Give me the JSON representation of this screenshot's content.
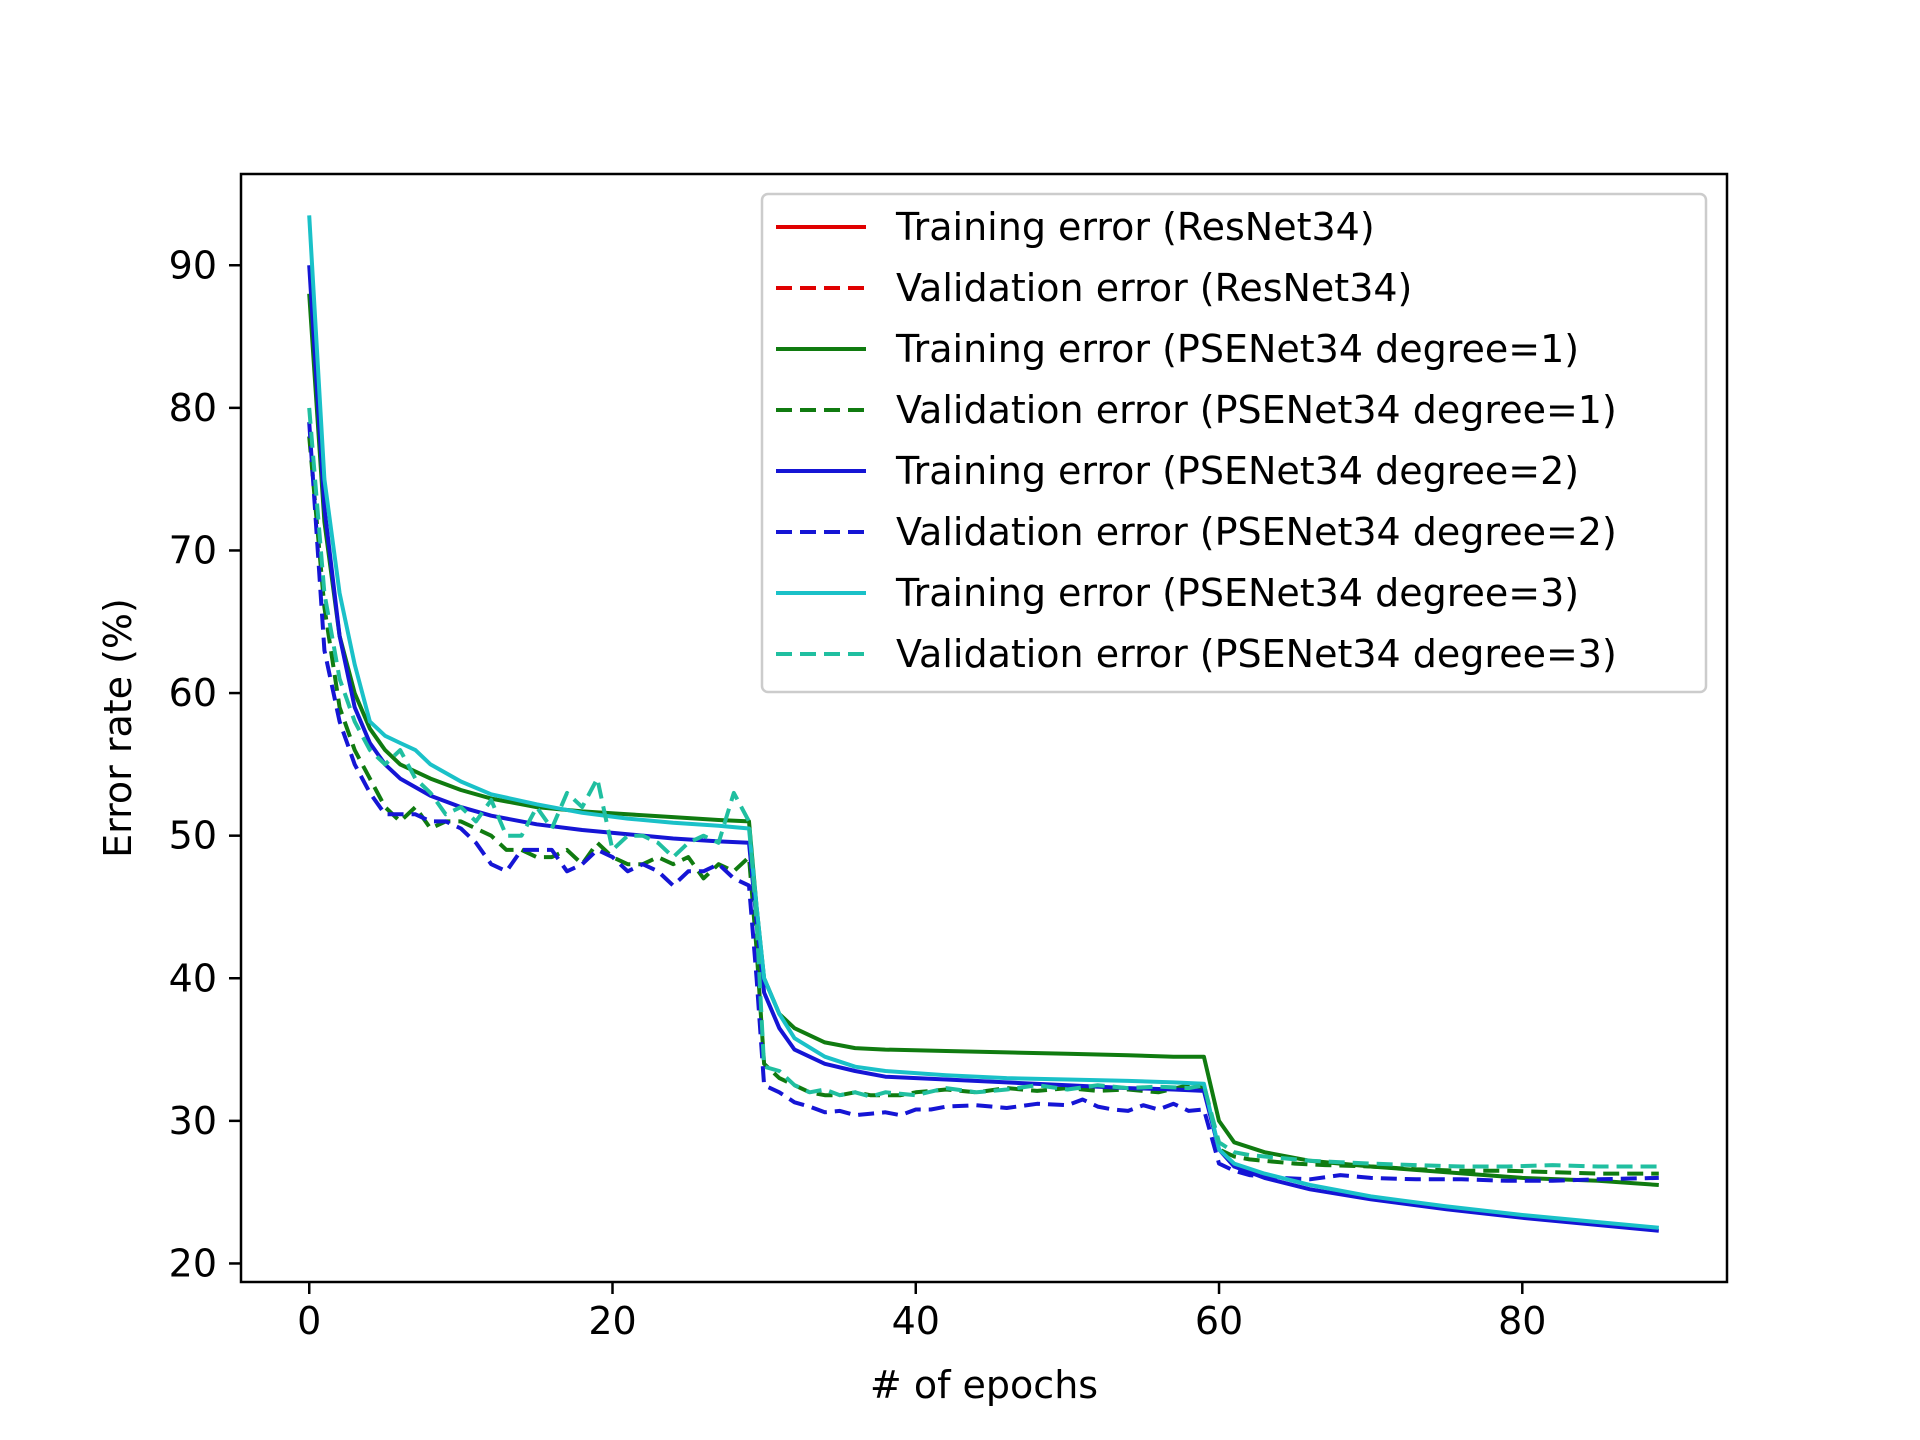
{
  "chart_data": {
    "type": "line",
    "title": "",
    "xlabel": "# of epochs",
    "ylabel": "Error rate (%)",
    "xlim": [
      -4.5,
      93.5
    ],
    "ylim": [
      18.7,
      96.4
    ],
    "xticks": [
      0,
      20,
      40,
      60,
      80
    ],
    "yticks": [
      20,
      30,
      40,
      50,
      60,
      70,
      80,
      90
    ],
    "legend_position": "upper right",
    "series": [
      {
        "name": "Training error (ResNet34)",
        "color": "#e00000",
        "dash": "solid",
        "x": [],
        "y": []
      },
      {
        "name": "Validation error (ResNet34)",
        "color": "#e00000",
        "dash": "dashed",
        "x": [],
        "y": []
      },
      {
        "name": "Training error (PSENet34 degree=1)",
        "color": "#107b10",
        "dash": "solid",
        "x": [
          0,
          1,
          2,
          3,
          4,
          5,
          6,
          8,
          10,
          12,
          15,
          18,
          21,
          24,
          27,
          29,
          29.5,
          30,
          31,
          32,
          34,
          36,
          38,
          42,
          46,
          50,
          54,
          57,
          59,
          60,
          61,
          63,
          66,
          70,
          75,
          80,
          85,
          89
        ],
        "y": [
          88,
          72,
          64,
          60,
          57.5,
          56,
          55,
          54,
          53.2,
          52.6,
          52,
          51.7,
          51.5,
          51.3,
          51.1,
          51.0,
          45,
          40,
          37.5,
          36.5,
          35.5,
          35.1,
          35.0,
          34.9,
          34.8,
          34.7,
          34.6,
          34.5,
          34.5,
          30,
          28.5,
          27.8,
          27.2,
          26.8,
          26.4,
          26.0,
          25.8,
          25.5
        ]
      },
      {
        "name": "Validation error (PSENet34 degree=1)",
        "color": "#107b10",
        "dash": "dashed",
        "x": [
          0,
          1,
          2,
          3,
          4,
          5,
          6,
          7,
          8,
          9,
          10,
          11,
          12,
          13,
          14,
          15,
          16,
          17,
          18,
          19,
          20,
          21,
          22,
          23,
          24,
          25,
          26,
          27,
          28,
          29,
          29.5,
          30,
          31,
          32,
          33,
          34,
          35,
          36,
          37,
          38,
          39,
          40,
          42,
          44,
          46,
          48,
          50,
          52,
          54,
          56,
          58,
          59,
          60,
          61,
          62,
          63,
          65,
          67,
          70,
          73,
          76,
          79,
          82,
          85,
          89
        ],
        "y": [
          78,
          66,
          59,
          56,
          54,
          52,
          51,
          52,
          50.5,
          51,
          51,
          50.5,
          50,
          49,
          49,
          48.5,
          48.5,
          49,
          48,
          49.5,
          48.5,
          48,
          48,
          48.5,
          48,
          48.5,
          47,
          48,
          47.5,
          48.5,
          42,
          34,
          33,
          32.5,
          32,
          31.8,
          31.8,
          32,
          31.8,
          31.8,
          31.8,
          32,
          32.2,
          32,
          32.3,
          32.1,
          32.3,
          32.1,
          32.2,
          32,
          32.5,
          32.3,
          28,
          27.5,
          27.3,
          27.2,
          27,
          26.9,
          26.8,
          26.6,
          26.5,
          26.5,
          26.4,
          26.3,
          26.3
        ]
      },
      {
        "name": "Training error (PSENet34 degree=2)",
        "color": "#1515d5",
        "dash": "solid",
        "x": [
          0,
          1,
          2,
          3,
          4,
          5,
          6,
          8,
          10,
          12,
          15,
          18,
          21,
          24,
          27,
          29,
          29.5,
          30,
          31,
          32,
          34,
          36,
          38,
          42,
          46,
          50,
          54,
          57,
          59,
          60,
          61,
          63,
          66,
          70,
          75,
          80,
          85,
          89
        ],
        "y": [
          90,
          73,
          64,
          59,
          56.5,
          55,
          54,
          52.8,
          52,
          51.4,
          50.8,
          50.4,
          50.1,
          49.8,
          49.6,
          49.5,
          44,
          39,
          36.5,
          35,
          34,
          33.5,
          33.1,
          32.9,
          32.7,
          32.5,
          32.3,
          32.2,
          32.1,
          28,
          26.8,
          26,
          25.2,
          24.5,
          23.8,
          23.2,
          22.7,
          22.3
        ]
      },
      {
        "name": "Validation error (PSENet34 degree=2)",
        "color": "#1515d5",
        "dash": "dashed",
        "x": [
          0,
          1,
          2,
          3,
          4,
          5,
          6,
          7,
          8,
          9,
          10,
          11,
          12,
          13,
          14,
          15,
          16,
          17,
          18,
          19,
          20,
          21,
          22,
          23,
          24,
          25,
          26,
          27,
          28,
          29,
          29.5,
          30,
          31,
          32,
          33,
          34,
          35,
          36,
          37,
          38,
          39,
          40,
          41,
          42,
          44,
          46,
          48,
          50,
          51,
          52,
          53,
          54,
          55,
          56,
          57,
          58,
          59,
          60,
          61,
          62,
          64,
          66,
          68,
          70,
          73,
          76,
          79,
          82,
          85,
          89
        ],
        "y": [
          79,
          63,
          58,
          55,
          53,
          51.5,
          51.5,
          51.5,
          51,
          51,
          50.5,
          49.5,
          48,
          47.5,
          49,
          49,
          49,
          47.5,
          48,
          49,
          48.5,
          47.5,
          48,
          47.5,
          46.5,
          47.5,
          47.5,
          48,
          47,
          46.5,
          40,
          32.5,
          32,
          31.3,
          31,
          30.6,
          30.7,
          30.4,
          30.5,
          30.6,
          30.4,
          30.8,
          30.8,
          31,
          31.1,
          30.9,
          31.2,
          31.1,
          31.5,
          31,
          30.8,
          30.7,
          31.1,
          30.8,
          31.2,
          30.7,
          30.8,
          27,
          26.5,
          26.2,
          26,
          25.9,
          26.2,
          26,
          25.9,
          25.9,
          25.8,
          25.8,
          25.9,
          26
        ]
      },
      {
        "name": "Training error (PSENet34 degree=3)",
        "color": "#1ac1c8",
        "dash": "solid",
        "x": [
          0,
          1,
          2,
          3,
          4,
          5,
          6,
          7,
          8,
          10,
          12,
          15,
          18,
          21,
          24,
          27,
          29,
          29.5,
          30,
          31,
          32,
          34,
          36,
          38,
          42,
          46,
          50,
          54,
          57,
          59,
          60,
          61,
          63,
          66,
          70,
          75,
          80,
          85,
          89
        ],
        "y": [
          93.5,
          75,
          67,
          62,
          58,
          57,
          56.5,
          56,
          55,
          53.8,
          52.9,
          52.2,
          51.6,
          51.2,
          50.9,
          50.7,
          50.5,
          45,
          40,
          37.5,
          35.8,
          34.5,
          33.8,
          33.5,
          33.2,
          33,
          32.9,
          32.8,
          32.7,
          32.6,
          28,
          27,
          26.3,
          25.5,
          24.7,
          24,
          23.4,
          22.9,
          22.5
        ]
      },
      {
        "name": "Validation error (PSENet34 degree=3)",
        "color": "#20bfa0",
        "dash": "dashed",
        "x": [
          0,
          1,
          2,
          3,
          4,
          5,
          6,
          7,
          8,
          9,
          10,
          11,
          12,
          13,
          14,
          15,
          16,
          17,
          18,
          19,
          20,
          21,
          22,
          23,
          24,
          25,
          26,
          27,
          28,
          29,
          29.5,
          30,
          31,
          32,
          33,
          34,
          35,
          36,
          37,
          38,
          40,
          42,
          44,
          46,
          48,
          50,
          52,
          54,
          56,
          58,
          59,
          60,
          61,
          62,
          64,
          66,
          68,
          70,
          73,
          76,
          79,
          82,
          85,
          89
        ],
        "y": [
          80,
          67,
          61,
          58,
          56,
          55,
          56,
          54,
          53,
          51.5,
          52,
          51,
          52.5,
          50,
          50,
          52,
          50.5,
          53,
          52,
          54,
          49,
          50,
          50,
          49.5,
          48.5,
          49.5,
          50,
          49.5,
          53,
          51,
          44,
          33.8,
          33.5,
          32.5,
          32,
          32.2,
          31.8,
          32,
          31.7,
          32,
          31.8,
          32.3,
          32,
          32.2,
          32.5,
          32.2,
          32.5,
          32.3,
          32.4,
          32.3,
          32.5,
          28.5,
          27.8,
          27.6,
          27.4,
          27.2,
          27.1,
          27,
          26.9,
          26.8,
          26.8,
          26.9,
          26.8,
          26.8
        ]
      }
    ]
  }
}
